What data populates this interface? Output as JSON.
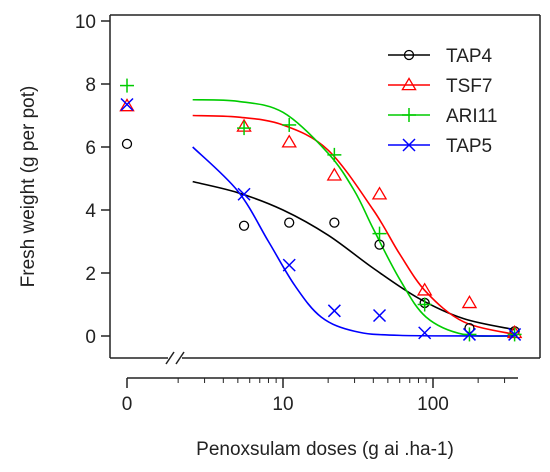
{
  "chart_data": {
    "type": "scatter",
    "xlabel": "Penoxsulam doses (g ai .ha-1)",
    "ylabel": "Fresh weight (g per pot)",
    "x_scale": "log",
    "x_axis_break": true,
    "xlim": [
      0.3,
      360
    ],
    "ylim": [
      0,
      10
    ],
    "x_ticks": [
      {
        "value": 0,
        "label": "0"
      },
      {
        "value": 10,
        "label": "10"
      },
      {
        "value": 100,
        "label": "100"
      }
    ],
    "y_ticks": [
      {
        "value": 0,
        "label": "0"
      },
      {
        "value": 2,
        "label": "2"
      },
      {
        "value": 4,
        "label": "4"
      },
      {
        "value": 6,
        "label": "6"
      },
      {
        "value": 8,
        "label": "8"
      },
      {
        "value": 10,
        "label": "10"
      }
    ],
    "legend_position": "top-right",
    "grid": false,
    "series": [
      {
        "name": "TAP4",
        "color": "#000000",
        "marker": "circle",
        "points": [
          [
            0,
            6.1
          ],
          [
            5.5,
            3.5
          ],
          [
            11,
            3.6
          ],
          [
            22,
            3.6
          ],
          [
            44,
            2.9
          ],
          [
            88,
            1.05
          ],
          [
            175,
            0.25
          ],
          [
            350,
            0.15
          ]
        ],
        "curve": [
          [
            2.5,
            4.9
          ],
          [
            5,
            4.55
          ],
          [
            10,
            4.0
          ],
          [
            20,
            3.2
          ],
          [
            40,
            2.15
          ],
          [
            80,
            1.2
          ],
          [
            160,
            0.55
          ],
          [
            350,
            0.2
          ]
        ]
      },
      {
        "name": "TSF7",
        "color": "#ff0000",
        "marker": "triangle",
        "points": [
          [
            0,
            7.3
          ],
          [
            5.5,
            6.65
          ],
          [
            11,
            6.15
          ],
          [
            22,
            5.1
          ],
          [
            44,
            4.5
          ],
          [
            88,
            1.45
          ],
          [
            175,
            1.05
          ],
          [
            350,
            0.1
          ]
        ],
        "curve": [
          [
            2.5,
            7.0
          ],
          [
            5,
            6.95
          ],
          [
            10,
            6.7
          ],
          [
            20,
            5.9
          ],
          [
            40,
            4.0
          ],
          [
            60,
            2.6
          ],
          [
            90,
            1.4
          ],
          [
            160,
            0.45
          ],
          [
            350,
            0.05
          ]
        ]
      },
      {
        "name": "ARI11",
        "color": "#00cc00",
        "marker": "plus",
        "points": [
          [
            0,
            7.95
          ],
          [
            5.5,
            6.6
          ],
          [
            11,
            6.7
          ],
          [
            22,
            5.75
          ],
          [
            44,
            3.25
          ],
          [
            88,
            1.0
          ],
          [
            175,
            0.05
          ],
          [
            350,
            0.05
          ]
        ],
        "curve": [
          [
            2.5,
            7.5
          ],
          [
            5,
            7.45
          ],
          [
            10,
            7.1
          ],
          [
            20,
            5.8
          ],
          [
            30,
            4.6
          ],
          [
            40,
            3.4
          ],
          [
            60,
            1.8
          ],
          [
            90,
            0.6
          ],
          [
            160,
            0.05
          ],
          [
            350,
            0.0
          ]
        ]
      },
      {
        "name": "TAP5",
        "color": "#0000ff",
        "marker": "x",
        "points": [
          [
            0,
            7.35
          ],
          [
            5.5,
            4.5
          ],
          [
            11,
            2.25
          ],
          [
            22,
            0.8
          ],
          [
            44,
            0.65
          ],
          [
            88,
            0.1
          ],
          [
            175,
            0.05
          ],
          [
            350,
            0.05
          ]
        ],
        "curve": [
          [
            2.5,
            6.0
          ],
          [
            5,
            4.6
          ],
          [
            8,
            3.0
          ],
          [
            12,
            1.6
          ],
          [
            18,
            0.6
          ],
          [
            30,
            0.15
          ],
          [
            60,
            0.02
          ],
          [
            350,
            0.0
          ]
        ]
      }
    ]
  }
}
